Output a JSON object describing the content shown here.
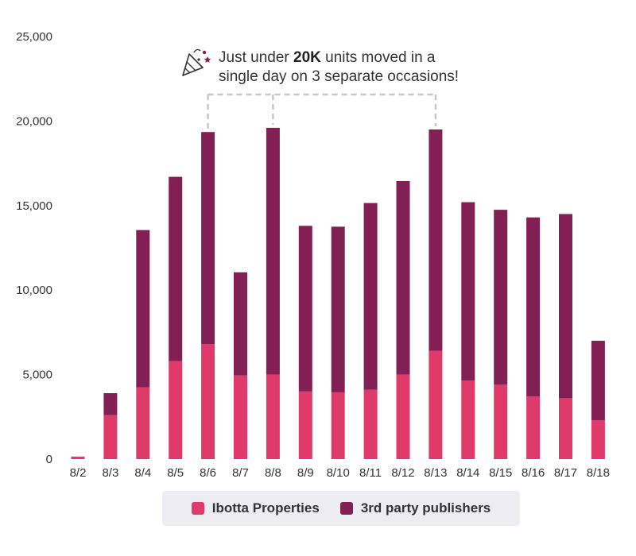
{
  "chart_data": {
    "type": "bar",
    "stacked": true,
    "title": "",
    "xlabel": "",
    "ylabel": "",
    "ylim": [
      0,
      25000
    ],
    "yticks": [
      0,
      5000,
      10000,
      15000,
      20000,
      25000
    ],
    "ytick_labels": [
      "0",
      "5,000",
      "10,000",
      "15,000",
      "20,000",
      "25,000"
    ],
    "categories": [
      "8/2",
      "8/3",
      "8/4",
      "8/5",
      "8/6",
      "8/7",
      "8/8",
      "8/9",
      "8/10",
      "8/11",
      "8/12",
      "8/13",
      "8/14",
      "8/15",
      "8/16",
      "8/17",
      "8/18"
    ],
    "series": [
      {
        "name": "Ibotta Properties",
        "color": "#e03a6b",
        "values": [
          150,
          2600,
          4250,
          5800,
          6800,
          4950,
          5000,
          4000,
          3950,
          4100,
          5000,
          6400,
          4650,
          4400,
          3700,
          3600,
          2300
        ]
      },
      {
        "name": "3rd party publishers",
        "color": "#821f55",
        "values": [
          0,
          1300,
          9300,
          10900,
          12550,
          6100,
          14600,
          9800,
          9800,
          11050,
          11450,
          13100,
          10550,
          10350,
          10600,
          10900,
          4700
        ]
      }
    ],
    "annotation": {
      "text_prefix": "Just under ",
      "text_bold": "20K",
      "text_line1_suffix": " units moved in a",
      "text_line2": "single day on 3 separate occasions!",
      "icon": "party-popper-icon",
      "highlighted_categories": [
        "8/6",
        "8/8",
        "8/13"
      ]
    },
    "legend": {
      "position": "bottom-center"
    }
  }
}
